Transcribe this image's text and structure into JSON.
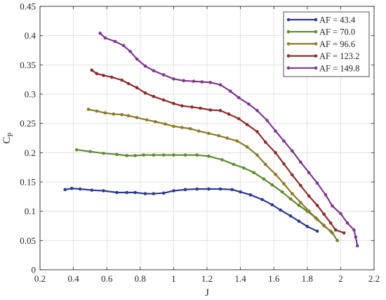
{
  "chart_data": {
    "type": "line",
    "xlabel": "J",
    "ylabel": "C",
    "ylabel_sub": "P",
    "xlim": [
      0.2,
      2.2
    ],
    "ylim": [
      0,
      0.45
    ],
    "xticks": [
      0.2,
      0.4,
      0.6,
      0.8,
      1,
      1.2,
      1.4,
      1.6,
      1.8,
      2,
      2.2
    ],
    "yticks": [
      0,
      0.05,
      0.1,
      0.15,
      0.2,
      0.25,
      0.3,
      0.35,
      0.4,
      0.45
    ],
    "xtick_labels": [
      "0.2",
      "0.4",
      "0.6",
      "0.8",
      "1",
      "1.2",
      "1.4",
      "1.6",
      "1.8",
      "2",
      "2.2"
    ],
    "ytick_labels": [
      "0",
      "0.05",
      "0.1",
      "0.15",
      "0.2",
      "0.25",
      "0.3",
      "0.35",
      "0.4",
      "0.45"
    ],
    "grid": true,
    "legend_position": "top-right",
    "series": [
      {
        "name": "AF = 43.4",
        "color": "#2e3b8c",
        "points": [
          [
            0.35,
            0.137
          ],
          [
            0.39,
            0.139
          ],
          [
            0.44,
            0.138
          ],
          [
            0.51,
            0.136
          ],
          [
            0.58,
            0.135
          ],
          [
            0.66,
            0.132
          ],
          [
            0.72,
            0.132
          ],
          [
            0.77,
            0.132
          ],
          [
            0.83,
            0.13
          ],
          [
            0.88,
            0.13
          ],
          [
            0.94,
            0.131
          ],
          [
            1.0,
            0.135
          ],
          [
            1.07,
            0.137
          ],
          [
            1.14,
            0.138
          ],
          [
            1.21,
            0.138
          ],
          [
            1.28,
            0.138
          ],
          [
            1.35,
            0.137
          ],
          [
            1.4,
            0.133
          ],
          [
            1.46,
            0.128
          ],
          [
            1.53,
            0.12
          ],
          [
            1.59,
            0.111
          ],
          [
            1.64,
            0.102
          ],
          [
            1.7,
            0.092
          ],
          [
            1.75,
            0.083
          ],
          [
            1.8,
            0.074
          ],
          [
            1.86,
            0.066
          ]
        ]
      },
      {
        "name": "AF = 70.0",
        "color": "#5f8a32",
        "points": [
          [
            0.42,
            0.205
          ],
          [
            0.5,
            0.202
          ],
          [
            0.58,
            0.199
          ],
          [
            0.66,
            0.197
          ],
          [
            0.72,
            0.195
          ],
          [
            0.77,
            0.195
          ],
          [
            0.82,
            0.196
          ],
          [
            0.88,
            0.196
          ],
          [
            0.94,
            0.196
          ],
          [
            1.0,
            0.196
          ],
          [
            1.07,
            0.196
          ],
          [
            1.14,
            0.196
          ],
          [
            1.21,
            0.194
          ],
          [
            1.29,
            0.188
          ],
          [
            1.36,
            0.18
          ],
          [
            1.42,
            0.174
          ],
          [
            1.48,
            0.166
          ],
          [
            1.54,
            0.155
          ],
          [
            1.59,
            0.145
          ],
          [
            1.65,
            0.133
          ],
          [
            1.7,
            0.121
          ],
          [
            1.75,
            0.11
          ],
          [
            1.8,
            0.1
          ],
          [
            1.85,
            0.089
          ],
          [
            1.9,
            0.076
          ],
          [
            1.95,
            0.063
          ],
          [
            1.98,
            0.05
          ]
        ]
      },
      {
        "name": "AF = 96.6",
        "color": "#8b7a2a",
        "points": [
          [
            0.49,
            0.274
          ],
          [
            0.54,
            0.271
          ],
          [
            0.59,
            0.268
          ],
          [
            0.64,
            0.266
          ],
          [
            0.69,
            0.265
          ],
          [
            0.73,
            0.263
          ],
          [
            0.78,
            0.26
          ],
          [
            0.84,
            0.256
          ],
          [
            0.89,
            0.253
          ],
          [
            0.95,
            0.249
          ],
          [
            1.0,
            0.245
          ],
          [
            1.05,
            0.243
          ],
          [
            1.1,
            0.241
          ],
          [
            1.15,
            0.237
          ],
          [
            1.21,
            0.233
          ],
          [
            1.27,
            0.229
          ],
          [
            1.32,
            0.225
          ],
          [
            1.38,
            0.22
          ],
          [
            1.44,
            0.21
          ],
          [
            1.5,
            0.196
          ],
          [
            1.55,
            0.18
          ],
          [
            1.61,
            0.163
          ],
          [
            1.66,
            0.147
          ],
          [
            1.71,
            0.13
          ],
          [
            1.76,
            0.115
          ],
          [
            1.81,
            0.1
          ],
          [
            1.86,
            0.086
          ],
          [
            1.9,
            0.075
          ],
          [
            1.94,
            0.066
          ]
        ]
      },
      {
        "name": "AF = 123.2",
        "color": "#8b2e2e",
        "points": [
          [
            0.51,
            0.341
          ],
          [
            0.54,
            0.335
          ],
          [
            0.58,
            0.332
          ],
          [
            0.63,
            0.329
          ],
          [
            0.69,
            0.324
          ],
          [
            0.73,
            0.318
          ],
          [
            0.78,
            0.311
          ],
          [
            0.83,
            0.302
          ],
          [
            0.88,
            0.296
          ],
          [
            0.94,
            0.29
          ],
          [
            1.0,
            0.284
          ],
          [
            1.05,
            0.28
          ],
          [
            1.11,
            0.278
          ],
          [
            1.16,
            0.276
          ],
          [
            1.22,
            0.273
          ],
          [
            1.28,
            0.272
          ],
          [
            1.33,
            0.266
          ],
          [
            1.39,
            0.258
          ],
          [
            1.44,
            0.248
          ],
          [
            1.5,
            0.236
          ],
          [
            1.55,
            0.218
          ],
          [
            1.61,
            0.2
          ],
          [
            1.66,
            0.181
          ],
          [
            1.71,
            0.162
          ],
          [
            1.76,
            0.144
          ],
          [
            1.81,
            0.126
          ],
          [
            1.86,
            0.11
          ],
          [
            1.9,
            0.095
          ],
          [
            1.94,
            0.08
          ],
          [
            1.97,
            0.068
          ],
          [
            2.02,
            0.063
          ]
        ]
      },
      {
        "name": "AF = 149.8",
        "color": "#7b3a8c",
        "points": [
          [
            0.56,
            0.404
          ],
          [
            0.59,
            0.396
          ],
          [
            0.65,
            0.39
          ],
          [
            0.7,
            0.383
          ],
          [
            0.74,
            0.373
          ],
          [
            0.78,
            0.36
          ],
          [
            0.83,
            0.348
          ],
          [
            0.88,
            0.34
          ],
          [
            0.94,
            0.333
          ],
          [
            1.0,
            0.326
          ],
          [
            1.06,
            0.323
          ],
          [
            1.12,
            0.322
          ],
          [
            1.17,
            0.321
          ],
          [
            1.22,
            0.32
          ],
          [
            1.28,
            0.316
          ],
          [
            1.34,
            0.305
          ],
          [
            1.39,
            0.294
          ],
          [
            1.45,
            0.283
          ],
          [
            1.5,
            0.272
          ],
          [
            1.56,
            0.255
          ],
          [
            1.61,
            0.237
          ],
          [
            1.66,
            0.22
          ],
          [
            1.71,
            0.203
          ],
          [
            1.76,
            0.184
          ],
          [
            1.81,
            0.166
          ],
          [
            1.86,
            0.148
          ],
          [
            1.91,
            0.128
          ],
          [
            1.95,
            0.109
          ],
          [
            2.0,
            0.096
          ],
          [
            2.04,
            0.08
          ],
          [
            2.08,
            0.068
          ],
          [
            2.09,
            0.056
          ],
          [
            2.1,
            0.041
          ]
        ]
      }
    ]
  }
}
